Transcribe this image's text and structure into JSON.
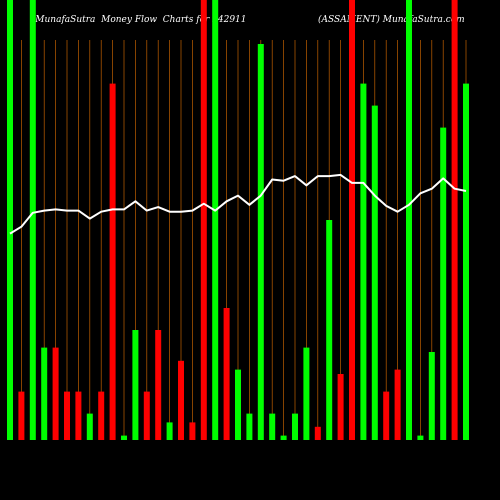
{
  "title": "MunafaSutra  Money Flow  Charts for 542911                         (ASSAMENT) MunafaSutra.com",
  "colors": {
    "background": "#000000",
    "up": "#00ff00",
    "down": "#ff0000",
    "line": "#ffffff",
    "grid": "#c06000"
  },
  "chart_data": {
    "type": "bar",
    "title": "MunafaSutra  Money Flow  Charts for 542911                         (ASSAMENT) MunafaSutra.com",
    "xlabel": "",
    "ylabel": "",
    "ylim": [
      0,
      100
    ],
    "grid": true,
    "x_ticks": [],
    "series": [
      {
        "type": "bar",
        "values": [
          100,
          11,
          100,
          21,
          21,
          11,
          11,
          6,
          11,
          81,
          1,
          25,
          11,
          25,
          4,
          18,
          4,
          100,
          100,
          30,
          16,
          6,
          90,
          6,
          1,
          6,
          21,
          3,
          50,
          15,
          100,
          81,
          76,
          11,
          16,
          100,
          1,
          20,
          71,
          100,
          81
        ],
        "colors": [
          "#00ff00",
          "#ff0000",
          "#00ff00",
          "#00ff00",
          "#ff0000",
          "#ff0000",
          "#ff0000",
          "#00ff00",
          "#ff0000",
          "#ff0000",
          "#00ff00",
          "#00ff00",
          "#ff0000",
          "#ff0000",
          "#00ff00",
          "#ff0000",
          "#ff0000",
          "#ff0000",
          "#00ff00",
          "#ff0000",
          "#00ff00",
          "#00ff00",
          "#00ff00",
          "#00ff00",
          "#00ff00",
          "#00ff00",
          "#00ff00",
          "#ff0000",
          "#00ff00",
          "#ff0000",
          "#ff0000",
          "#00ff00",
          "#00ff00",
          "#ff0000",
          "#ff0000",
          "#00ff00",
          "#00ff00",
          "#00ff00",
          "#00ff00",
          "#ff0000",
          "#00ff00"
        ]
      },
      {
        "type": "line",
        "values": [
          23,
          29,
          41,
          43,
          44,
          43,
          43,
          36,
          42,
          44,
          44,
          51,
          43,
          46,
          42,
          42,
          43,
          49,
          43,
          51,
          56,
          48,
          56,
          70,
          69,
          73,
          65,
          73,
          73,
          74,
          67,
          67,
          56,
          47,
          42,
          48,
          58,
          62,
          71,
          62,
          60
        ]
      }
    ]
  }
}
